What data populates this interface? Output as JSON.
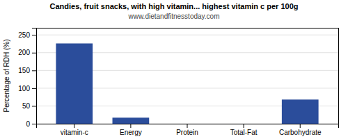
{
  "chart_data": {
    "type": "bar",
    "title": "Candies, fruit snacks, with high vitamin... highest vitamin c per 100g",
    "subtitle": "www.dietandfitnesstoday.com",
    "categories": [
      "vitamin-c",
      "Energy",
      "Protein",
      "Total-Fat",
      "Carbohydrate"
    ],
    "values": [
      226,
      17,
      0,
      0,
      68
    ],
    "color": "#2b4d9b",
    "ylabel": "Percentage of RDH (%)",
    "ylim": [
      0,
      270
    ],
    "yticks": [
      0,
      50,
      100,
      150,
      200,
      250
    ],
    "grid": true
  }
}
